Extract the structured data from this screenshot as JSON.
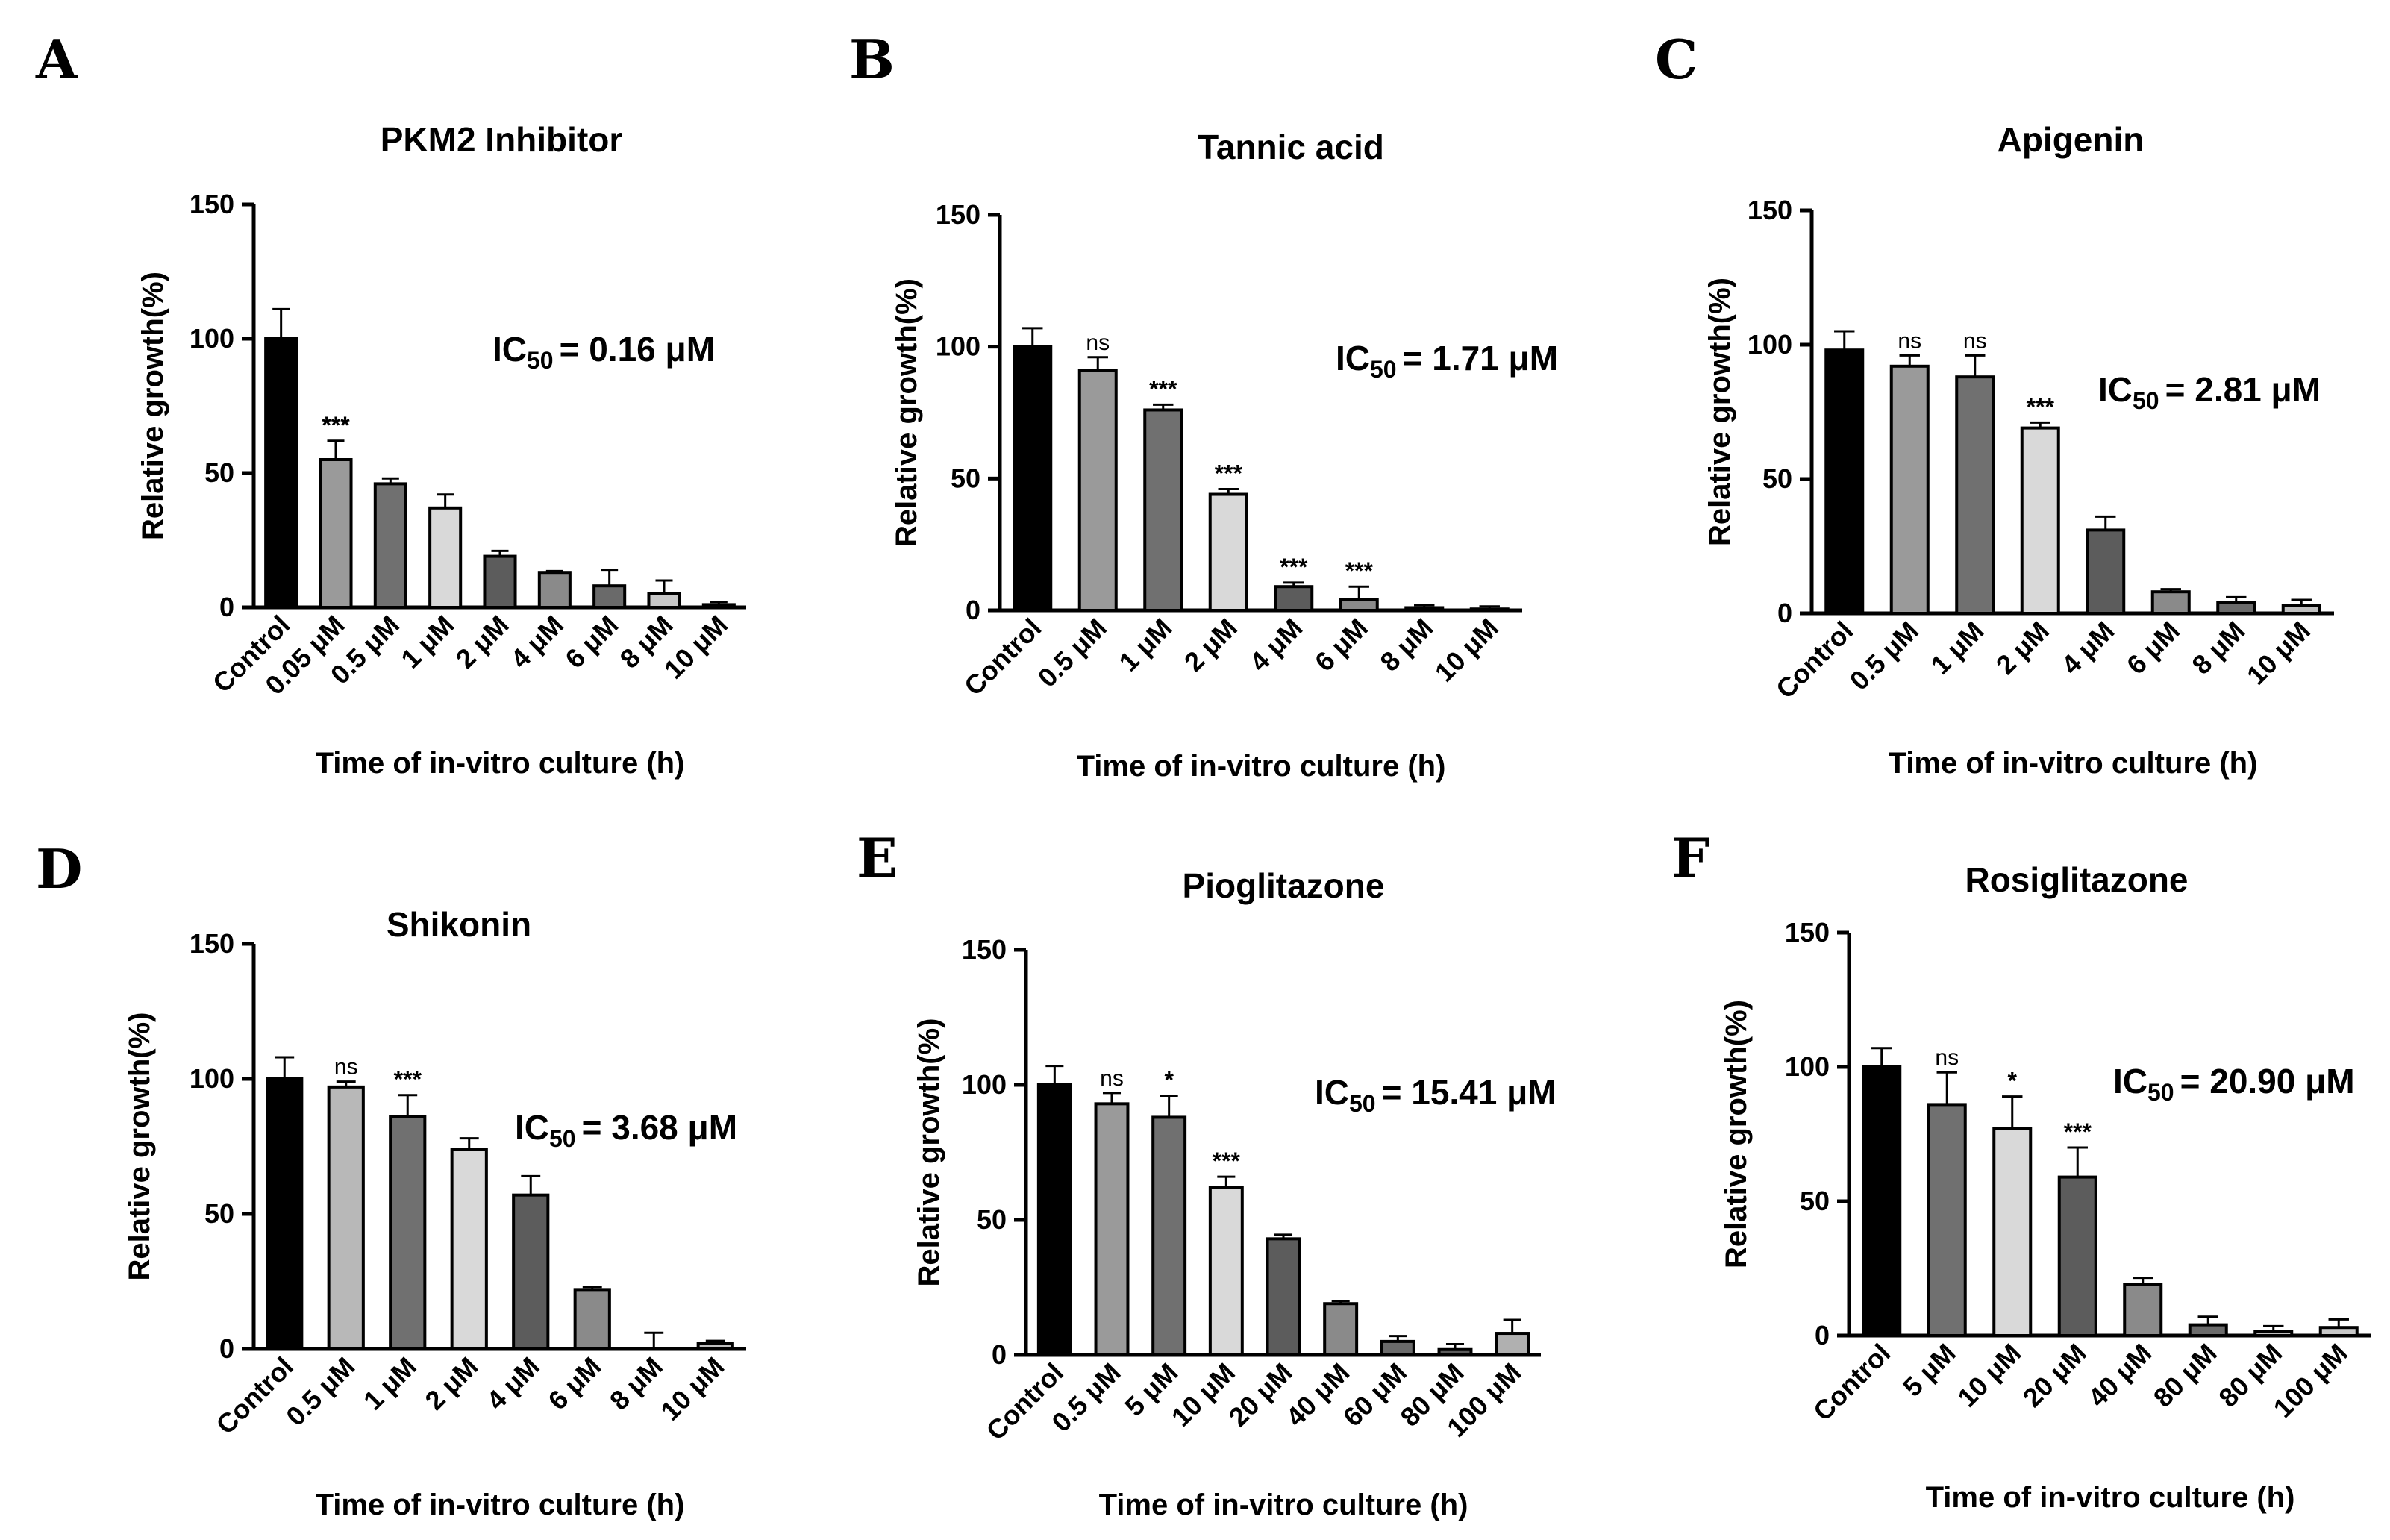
{
  "chart_data": [
    {
      "panel": "A",
      "type": "bar",
      "title": "PKM2 Inhibitor",
      "ylabel": "Relative growth(%)",
      "xlabel": "Time of in-vitro culture (h)",
      "ylim": [
        0,
        150
      ],
      "yticks": [
        0,
        50,
        100,
        150
      ],
      "categories": [
        "Control",
        "0.05 μM",
        "0.5 μM",
        "1 μM",
        "2 μM",
        "4 μM",
        "6 μM",
        "8 μM",
        "10 μM"
      ],
      "values": [
        100,
        55,
        46,
        37,
        19,
        13,
        8,
        5,
        1
      ],
      "errors": [
        11,
        7,
        2,
        5,
        2,
        0.5,
        6,
        5,
        1
      ],
      "significance": [
        "",
        "***",
        "",
        "",
        "",
        "",
        "",
        "",
        ""
      ],
      "colors": [
        "#000000",
        "#9a9a9a",
        "#707070",
        "#d9d9d9",
        "#5c5c5c",
        "#8a8a8a",
        "#6a6a6a",
        "#c8c8c8",
        "#bfbfbf"
      ],
      "ic50_prefix": "IC",
      "ic50_sub": "50",
      "ic50_value": "= 0.16 μM"
    },
    {
      "panel": "B",
      "type": "bar",
      "title": "Tannic acid",
      "ylabel": "Relative growth(%)",
      "xlabel": "Time of in-vitro culture (h)",
      "ylim": [
        0,
        150
      ],
      "yticks": [
        0,
        50,
        100,
        150
      ],
      "categories": [
        "Control",
        "0.5 μM",
        "1 μM",
        "2 μM",
        "4 μM",
        "6 μM",
        "8 μM",
        "10 μM"
      ],
      "values": [
        100,
        91,
        76,
        44,
        9,
        4,
        1,
        0.5
      ],
      "errors": [
        7,
        5,
        2,
        2,
        1.5,
        5,
        1,
        1
      ],
      "significance": [
        "",
        "ns",
        "***",
        "***",
        "***",
        "***",
        "",
        ""
      ],
      "colors": [
        "#000000",
        "#9a9a9a",
        "#707070",
        "#d9d9d9",
        "#5c5c5c",
        "#8a8a8a",
        "#6a6a6a",
        "#bfbfbf"
      ],
      "ic50_prefix": "IC",
      "ic50_sub": "50",
      "ic50_value": "= 1.71 μM"
    },
    {
      "panel": "C",
      "type": "bar",
      "title": "Apigenin",
      "ylabel": "Relative growth(%)",
      "xlabel": "Time of in-vitro culture (h)",
      "ylim": [
        0,
        150
      ],
      "yticks": [
        0,
        50,
        100,
        150
      ],
      "categories": [
        "Control",
        "0.5 μM",
        "1 μM",
        "2 μM",
        "4 μM",
        "6 μM",
        "8 μM",
        "10 μM"
      ],
      "values": [
        98,
        92,
        88,
        69,
        31,
        8,
        4,
        3
      ],
      "errors": [
        7,
        4,
        8,
        2,
        5,
        1,
        2,
        2
      ],
      "significance": [
        "",
        "ns",
        "ns",
        "***",
        "",
        "",
        "",
        ""
      ],
      "colors": [
        "#000000",
        "#9a9a9a",
        "#707070",
        "#d9d9d9",
        "#5c5c5c",
        "#8a8a8a",
        "#6a6a6a",
        "#bfbfbf"
      ],
      "ic50_prefix": "IC",
      "ic50_sub": "50",
      "ic50_value": "= 2.81 μM"
    },
    {
      "panel": "D",
      "type": "bar",
      "title": "Shikonin",
      "ylabel": "Relative growth(%)",
      "xlabel": "Time of in-vitro culture (h)",
      "ylim": [
        0,
        150
      ],
      "yticks": [
        0,
        50,
        100,
        150
      ],
      "categories": [
        "Control",
        "0.5 μM",
        "1 μM",
        "2 μM",
        "4 μM",
        "6 μM",
        "8 μM",
        "10 μM"
      ],
      "values": [
        100,
        97,
        86,
        74,
        57,
        22,
        0,
        2
      ],
      "errors": [
        8,
        2,
        8,
        4,
        7,
        1,
        6,
        1
      ],
      "significance": [
        "",
        "ns",
        "***",
        "",
        "",
        "",
        "",
        ""
      ],
      "colors": [
        "#000000",
        "#b8b8b8",
        "#707070",
        "#d9d9d9",
        "#5c5c5c",
        "#8a8a8a",
        "#6a6a6a",
        "#bfbfbf"
      ],
      "ic50_prefix": "IC",
      "ic50_sub": "50",
      "ic50_value": "= 3.68 μM"
    },
    {
      "panel": "E",
      "type": "bar",
      "title": "Pioglitazone",
      "ylabel": "Relative growth(%)",
      "xlabel": "Time of in-vitro culture (h)",
      "ylim": [
        0,
        150
      ],
      "yticks": [
        0,
        50,
        100,
        150
      ],
      "categories": [
        "Control",
        "0.5 μM",
        "5 μM",
        "10 μM",
        "20 μM",
        "40 μM",
        "60 μM",
        "80 μM",
        "100 μM"
      ],
      "values": [
        100,
        93,
        88,
        62,
        43,
        19,
        5,
        2,
        8
      ],
      "errors": [
        7,
        4,
        8,
        4,
        1.5,
        1,
        2,
        2,
        5
      ],
      "significance": [
        "",
        "ns",
        "*",
        "***",
        "",
        "",
        "",
        "",
        ""
      ],
      "colors": [
        "#000000",
        "#9a9a9a",
        "#707070",
        "#d9d9d9",
        "#5c5c5c",
        "#8a8a8a",
        "#6a6a6a",
        "#5a5a5a",
        "#b0b0b0"
      ],
      "ic50_prefix": "IC",
      "ic50_sub": "50",
      "ic50_value": "= 15.41 μM"
    },
    {
      "panel": "F",
      "type": "bar",
      "title": "Rosiglitazone",
      "ylabel": "Relative growth(%)",
      "xlabel": "Time of in-vitro culture (h)",
      "ylim": [
        0,
        150
      ],
      "yticks": [
        0,
        50,
        100,
        150
      ],
      "categories": [
        "Control",
        "5 μM",
        "10 μM",
        "20 μM",
        "40 μM",
        "80 μM",
        "80 μM",
        "100 μM"
      ],
      "values": [
        100,
        86,
        77,
        59,
        19,
        4,
        1.5,
        3
      ],
      "errors": [
        7,
        12,
        12,
        11,
        2.5,
        3,
        2,
        3
      ],
      "significance": [
        "",
        "ns",
        "*",
        "***",
        "",
        "",
        "",
        ""
      ],
      "colors": [
        "#000000",
        "#707070",
        "#d9d9d9",
        "#5c5c5c",
        "#8a8a8a",
        "#6a6a6a",
        "#bfbfbf",
        "#c8c8c8"
      ],
      "ic50_prefix": "IC",
      "ic50_sub": "50",
      "ic50_value": "= 20.90 μM"
    }
  ]
}
